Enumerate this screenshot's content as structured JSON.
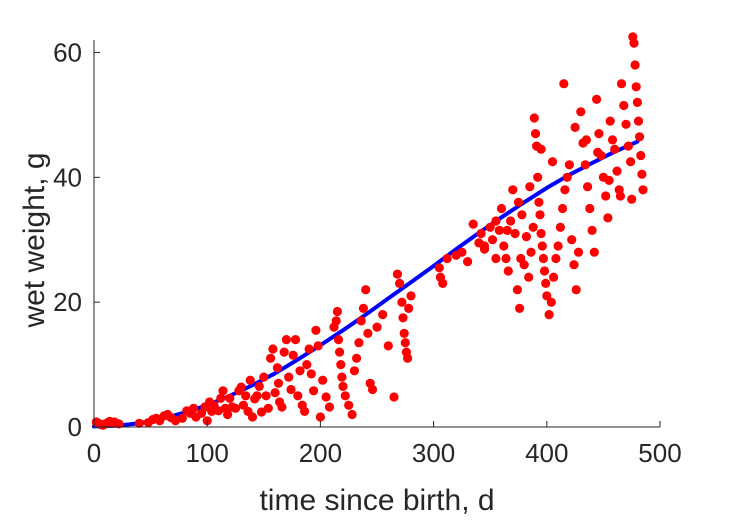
{
  "chart_data": {
    "type": "scatter",
    "xlabel": "time since birth, d",
    "ylabel": "wet weight, g",
    "xlim": [
      0,
      500
    ],
    "ylim": [
      0,
      62
    ],
    "xticks": [
      0,
      100,
      200,
      300,
      400,
      500
    ],
    "yticks": [
      0,
      20,
      40,
      60
    ],
    "grid": false,
    "colors": {
      "points": "#ff0000",
      "fit": "#0000ff",
      "axis": "#262626"
    },
    "series": [
      {
        "kind": "points",
        "values": [
          [
            2,
            0.8
          ],
          [
            4,
            0.6
          ],
          [
            6,
            0.4
          ],
          [
            8,
            0.3
          ],
          [
            10,
            0.5
          ],
          [
            12,
            0.7
          ],
          [
            14,
            0.9
          ],
          [
            16,
            0.6
          ],
          [
            18,
            0.8
          ],
          [
            22,
            0.5
          ],
          [
            40,
            0.6
          ],
          [
            48,
            0.7
          ],
          [
            52,
            1.2
          ],
          [
            55,
            1.4
          ],
          [
            58,
            1.0
          ],
          [
            62,
            1.8
          ],
          [
            65,
            2.0
          ],
          [
            68,
            1.5
          ],
          [
            72,
            1.0
          ],
          [
            78,
            1.4
          ],
          [
            82,
            2.6
          ],
          [
            85,
            2.2
          ],
          [
            88,
            3.0
          ],
          [
            90,
            1.6
          ],
          [
            95,
            2.2
          ],
          [
            98,
            3.2
          ],
          [
            100,
            1.0
          ],
          [
            102,
            4.0
          ],
          [
            104,
            2.5
          ],
          [
            106,
            3.5
          ],
          [
            110,
            2.6
          ],
          [
            112,
            4.6
          ],
          [
            114,
            5.8
          ],
          [
            116,
            3.0
          ],
          [
            118,
            2.0
          ],
          [
            120,
            4.6
          ],
          [
            122,
            3.2
          ],
          [
            125,
            3.0
          ],
          [
            128,
            5.8
          ],
          [
            130,
            6.4
          ],
          [
            132,
            3.5
          ],
          [
            134,
            5.0
          ],
          [
            136,
            2.5
          ],
          [
            138,
            7.5
          ],
          [
            140,
            1.6
          ],
          [
            142,
            4.5
          ],
          [
            144,
            5.0
          ],
          [
            146,
            6.5
          ],
          [
            148,
            2.4
          ],
          [
            150,
            8.0
          ],
          [
            152,
            5.0
          ],
          [
            154,
            3.0
          ],
          [
            156,
            11.0
          ],
          [
            158,
            12.5
          ],
          [
            160,
            5.5
          ],
          [
            162,
            9.5
          ],
          [
            163,
            7.0
          ],
          [
            164,
            4.0
          ],
          [
            166,
            3.2
          ],
          [
            168,
            12.0
          ],
          [
            170,
            14.0
          ],
          [
            172,
            8.0
          ],
          [
            174,
            6.0
          ],
          [
            176,
            11.5
          ],
          [
            178,
            14.0
          ],
          [
            180,
            5.0
          ],
          [
            182,
            9.0
          ],
          [
            184,
            3.5
          ],
          [
            186,
            2.5
          ],
          [
            188,
            10.0
          ],
          [
            190,
            12.5
          ],
          [
            192,
            8.5
          ],
          [
            194,
            5.8
          ],
          [
            196,
            15.5
          ],
          [
            198,
            13.0
          ],
          [
            200,
            1.6
          ],
          [
            202,
            7.5
          ],
          [
            205,
            4.8
          ],
          [
            208,
            3.2
          ],
          [
            212,
            16.0
          ],
          [
            214,
            17.0
          ],
          [
            215,
            18.5
          ],
          [
            216,
            14.0
          ],
          [
            217,
            12.0
          ],
          [
            218,
            10.0
          ],
          [
            219,
            8.0
          ],
          [
            220,
            6.5
          ],
          [
            222,
            5.0
          ],
          [
            225,
            3.5
          ],
          [
            228,
            2.0
          ],
          [
            230,
            9.0
          ],
          [
            232,
            11.0
          ],
          [
            234,
            13.5
          ],
          [
            236,
            17.0
          ],
          [
            238,
            19.0
          ],
          [
            240,
            22.0
          ],
          [
            242,
            15.0
          ],
          [
            244,
            7.0
          ],
          [
            246,
            6.0
          ],
          [
            250,
            16.0
          ],
          [
            255,
            18.0
          ],
          [
            260,
            13.0
          ],
          [
            265,
            4.8
          ],
          [
            268,
            24.5
          ],
          [
            270,
            23.0
          ],
          [
            272,
            20.0
          ],
          [
            273,
            17.5
          ],
          [
            274,
            15.0
          ],
          [
            275,
            13.5
          ],
          [
            276,
            12.0
          ],
          [
            277,
            11.0
          ],
          [
            278,
            19.0
          ],
          [
            280,
            21.0
          ],
          [
            305,
            25.5
          ],
          [
            306,
            24.0
          ],
          [
            308,
            23.0
          ],
          [
            312,
            27.0
          ],
          [
            320,
            27.5
          ],
          [
            325,
            28.0
          ],
          [
            330,
            26.5
          ],
          [
            340,
            29.5
          ],
          [
            342,
            31.0
          ],
          [
            345,
            28.5
          ],
          [
            350,
            32.0
          ],
          [
            352,
            30.0
          ],
          [
            355,
            33.0
          ],
          [
            358,
            31.5
          ],
          [
            360,
            35.0
          ],
          [
            362,
            29.0
          ],
          [
            364,
            27.0
          ],
          [
            366,
            25.0
          ],
          [
            368,
            33.0
          ],
          [
            370,
            38.0
          ],
          [
            372,
            31.0
          ],
          [
            374,
            22.0
          ],
          [
            375,
            36.0
          ],
          [
            376,
            19.0
          ],
          [
            377,
            27.0
          ],
          [
            378,
            34.0
          ],
          [
            380,
            26.0
          ],
          [
            382,
            30.5
          ],
          [
            384,
            24.0
          ],
          [
            386,
            28.0
          ],
          [
            388,
            32.0
          ],
          [
            389,
            49.5
          ],
          [
            390,
            47.0
          ],
          [
            391,
            45.0
          ],
          [
            392,
            40.0
          ],
          [
            393,
            36.0
          ],
          [
            394,
            34.0
          ],
          [
            395,
            31.0
          ],
          [
            396,
            29.0
          ],
          [
            397,
            27.0
          ],
          [
            398,
            25.0
          ],
          [
            399,
            23.0
          ],
          [
            400,
            21.0
          ],
          [
            402,
            18.0
          ],
          [
            404,
            20.0
          ],
          [
            406,
            24.0
          ],
          [
            408,
            27.0
          ],
          [
            410,
            29.0
          ],
          [
            412,
            32.0
          ],
          [
            414,
            35.0
          ],
          [
            416,
            38.0
          ],
          [
            418,
            40.0
          ],
          [
            420,
            42.0
          ],
          [
            422,
            30.0
          ],
          [
            424,
            26.0
          ],
          [
            426,
            22.0
          ],
          [
            428,
            28.0
          ],
          [
            430,
            50.5
          ],
          [
            432,
            45.5
          ],
          [
            434,
            42.0
          ],
          [
            436,
            38.5
          ],
          [
            438,
            35.0
          ],
          [
            440,
            31.5
          ],
          [
            442,
            28.0
          ],
          [
            444,
            52.5
          ],
          [
            446,
            47.0
          ],
          [
            448,
            43.5
          ],
          [
            450,
            40.0
          ],
          [
            452,
            37.0
          ],
          [
            454,
            33.5
          ],
          [
            456,
            49.0
          ],
          [
            458,
            46.0
          ],
          [
            460,
            44.5
          ],
          [
            462,
            41.0
          ],
          [
            464,
            38.0
          ],
          [
            466,
            55.0
          ],
          [
            468,
            51.5
          ],
          [
            470,
            48.5
          ],
          [
            472,
            45.0
          ],
          [
            474,
            42.5
          ],
          [
            476,
            62.5
          ],
          [
            477,
            61.5
          ],
          [
            478,
            58.0
          ],
          [
            479,
            54.5
          ],
          [
            480,
            52.0
          ],
          [
            481,
            49.0
          ],
          [
            482,
            46.5
          ],
          [
            483,
            43.5
          ],
          [
            484,
            40.5
          ],
          [
            485,
            38.0
          ],
          [
            475,
            36.5
          ],
          [
            465,
            37.0
          ],
          [
            455,
            39.5
          ],
          [
            445,
            44.0
          ],
          [
            435,
            46.0
          ],
          [
            425,
            48.0
          ],
          [
            415,
            55.0
          ],
          [
            405,
            42.5
          ],
          [
            395,
            44.5
          ],
          [
            385,
            38.5
          ],
          [
            365,
            31.5
          ],
          [
            355,
            27.0
          ],
          [
            345,
            29.0
          ],
          [
            335,
            32.5
          ]
        ]
      },
      {
        "kind": "fit",
        "values": [
          [
            0,
            0.1
          ],
          [
            20,
            0.2
          ],
          [
            40,
            0.6
          ],
          [
            60,
            1.3
          ],
          [
            80,
            2.3
          ],
          [
            100,
            3.5
          ],
          [
            120,
            5.0
          ],
          [
            140,
            6.7
          ],
          [
            160,
            8.6
          ],
          [
            180,
            10.8
          ],
          [
            200,
            13.1
          ],
          [
            220,
            15.5
          ],
          [
            240,
            18.0
          ],
          [
            260,
            20.6
          ],
          [
            280,
            23.2
          ],
          [
            300,
            25.8
          ],
          [
            320,
            28.5
          ],
          [
            340,
            31.1
          ],
          [
            360,
            33.6
          ],
          [
            380,
            36.0
          ],
          [
            400,
            38.3
          ],
          [
            420,
            40.4
          ],
          [
            440,
            42.3
          ],
          [
            460,
            44.1
          ],
          [
            480,
            45.7
          ]
        ]
      }
    ]
  }
}
